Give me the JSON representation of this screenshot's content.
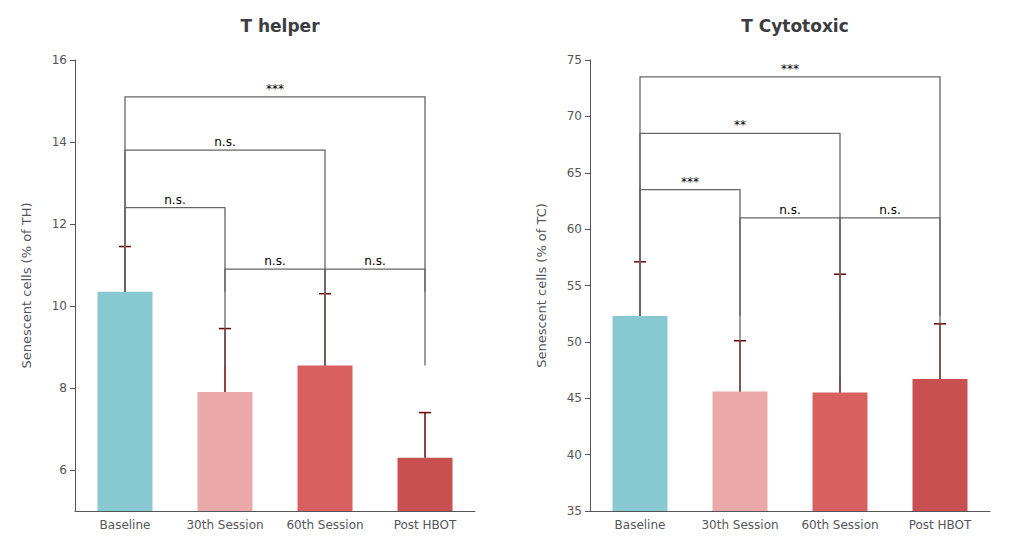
{
  "chart_data": [
    {
      "type": "bar",
      "title": "T helper",
      "ylabel": "Senescent cells (% of TH)",
      "categories": [
        "Baseline",
        "30th Session",
        "60th Session",
        "Post HBOT"
      ],
      "values": [
        10.35,
        7.9,
        8.55,
        6.3
      ],
      "errors_upper": [
        1.1,
        1.55,
        1.75,
        1.1
      ],
      "colors": [
        "#88C8D0",
        "#EAA8A8",
        "#D96060",
        "#C95050"
      ],
      "ylim": [
        5,
        16
      ],
      "yticks": [
        6,
        8,
        10,
        12,
        14,
        16
      ],
      "grid": false,
      "annotations": [
        {
          "from": "Baseline",
          "to": "30th Session",
          "y": 12.4,
          "label": "n.s.",
          "drop_to": 10.35
        },
        {
          "from": "Baseline",
          "to": "60th Session",
          "y": 13.8,
          "label": "n.s.",
          "drop_to": 10.35
        },
        {
          "from": "Baseline",
          "to": "Post HBOT",
          "y": 15.1,
          "label": "***",
          "drop_to": 10.35
        },
        {
          "from": "30th Session",
          "to": "60th Session",
          "y": 10.9,
          "label": "n.s.",
          "drop_to": 8.55
        },
        {
          "from": "60th Session",
          "to": "Post HBOT",
          "y": 10.9,
          "label": "n.s.",
          "drop_to": 8.55
        }
      ]
    },
    {
      "type": "bar",
      "title": "T Cytotoxic",
      "ylabel": "Senescent cells (% of TC)",
      "categories": [
        "Baseline",
        "30th Session",
        "60th Session",
        "Post HBOT"
      ],
      "values": [
        52.3,
        45.6,
        45.5,
        46.7
      ],
      "errors_upper": [
        4.8,
        4.5,
        10.5,
        4.9
      ],
      "colors": [
        "#88C8D0",
        "#EAA8A8",
        "#D96060",
        "#C95050"
      ],
      "ylim": [
        35,
        75
      ],
      "yticks": [
        35,
        40,
        45,
        50,
        55,
        60,
        65,
        70,
        75
      ],
      "grid": false,
      "annotations": [
        {
          "from": "Baseline",
          "to": "30th Session",
          "y": 63.5,
          "label": "***",
          "drop_to": 52.3
        },
        {
          "from": "Baseline",
          "to": "60th Session",
          "y": 68.5,
          "label": "**",
          "drop_to": 52.3
        },
        {
          "from": "Baseline",
          "to": "Post HBOT",
          "y": 73.5,
          "label": "***",
          "drop_to": 52.3
        },
        {
          "from": "30th Session",
          "to": "60th Session",
          "y": 61.0,
          "label": "n.s.",
          "drop_to": 45.6
        },
        {
          "from": "60th Session",
          "to": "Post HBOT",
          "y": 61.0,
          "label": "n.s.",
          "drop_to": 46.7
        }
      ]
    }
  ]
}
